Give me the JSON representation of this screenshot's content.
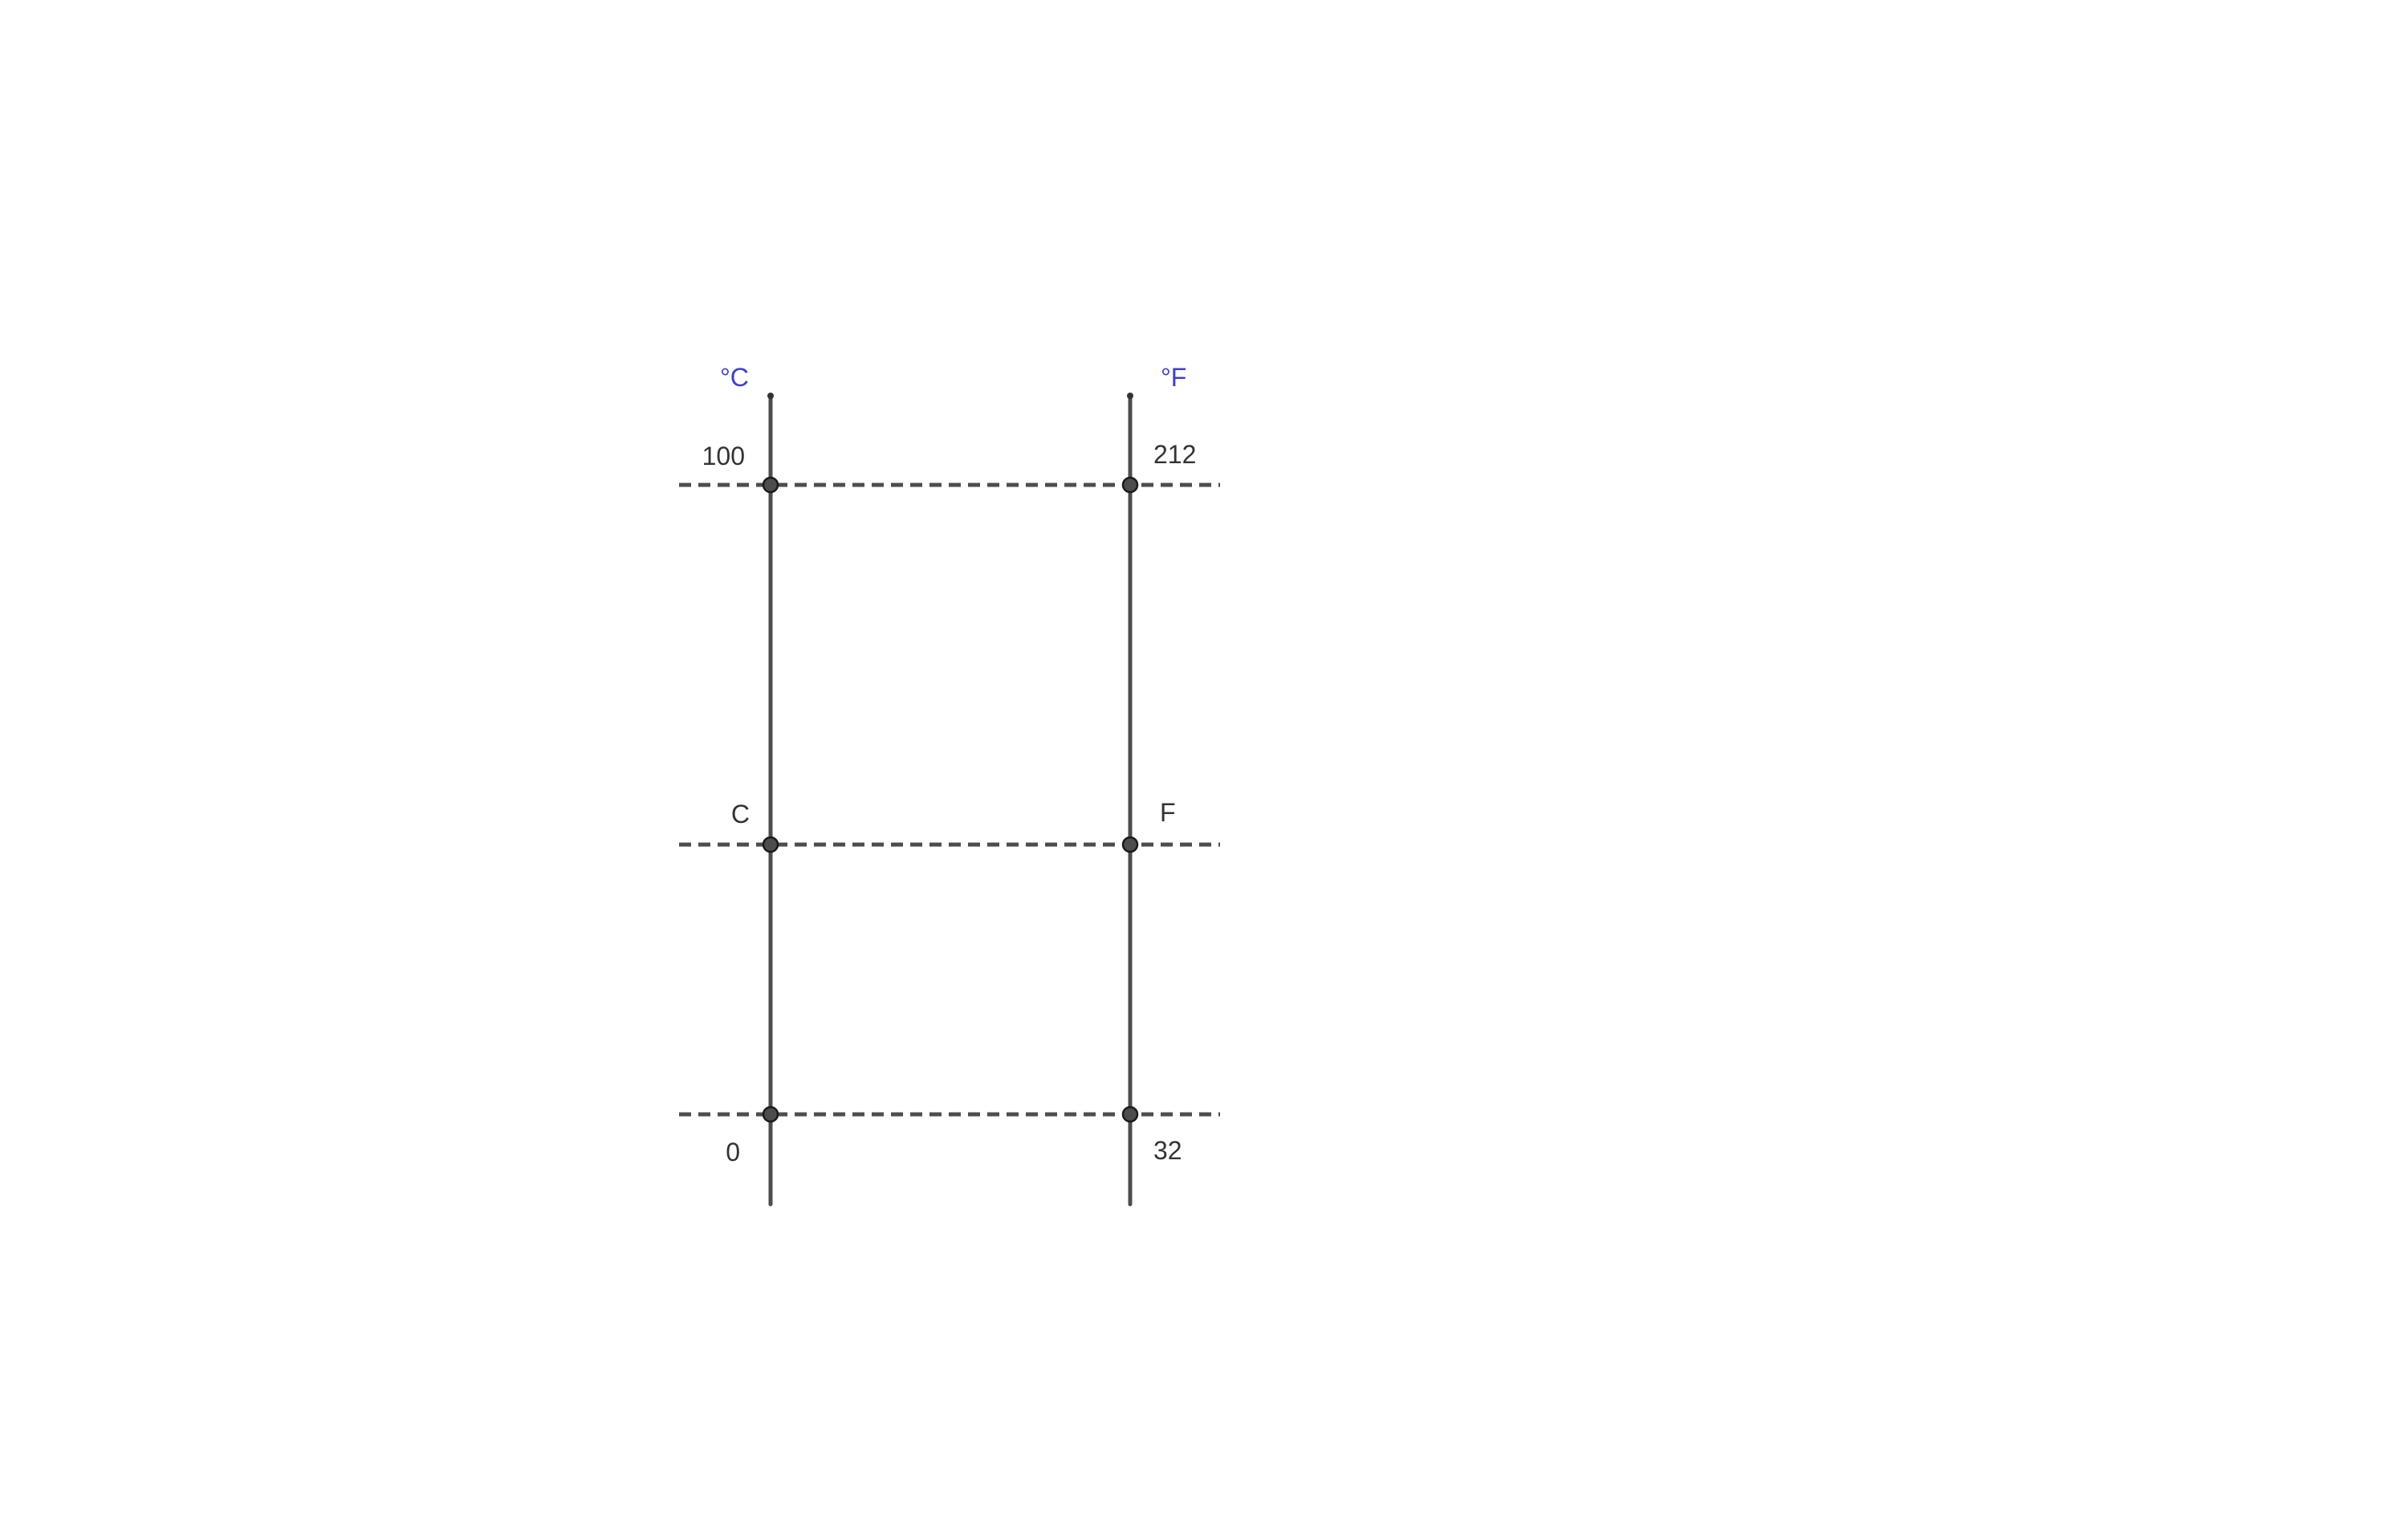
{
  "scales": {
    "left": {
      "unit": "°C",
      "upper_value": "100",
      "variable": "C",
      "lower_value": "0"
    },
    "right": {
      "unit": "°F",
      "upper_value": "212",
      "variable": "F",
      "lower_value": "32"
    }
  },
  "colors": {
    "unit_label": "#3d3ddb",
    "lines": "#4d4d4d",
    "text": "#333333"
  }
}
